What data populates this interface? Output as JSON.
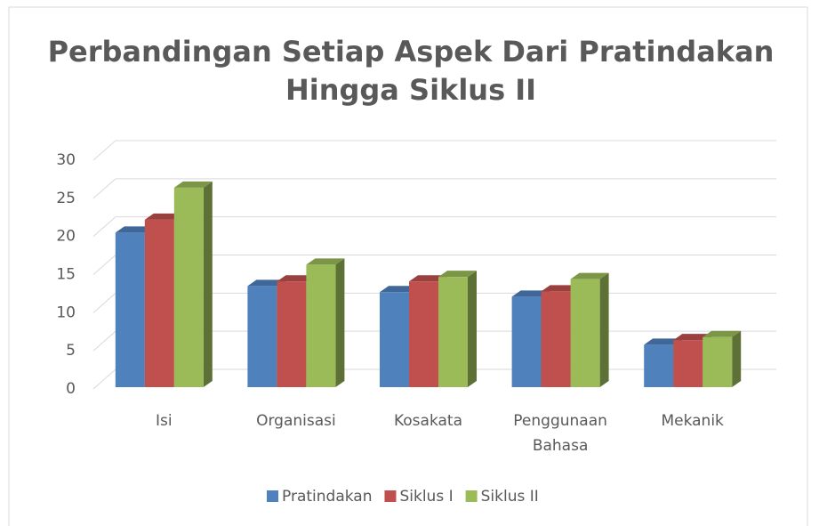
{
  "chart_data": {
    "type": "bar3d",
    "title": [
      "Perbandingan Setiap Aspek Dari Pratindakan",
      "Hingga Siklus II"
    ],
    "categories": [
      "Isi",
      "Organisasi",
      "Kosakata",
      "Penggunaan Bahasa",
      "Mekanik"
    ],
    "series": [
      {
        "name": "Pratindakan",
        "color": "#4f81bd",
        "values": [
          20.5,
          13.5,
          12.7,
          12.1,
          5.8
        ]
      },
      {
        "name": "Siklus I",
        "color": "#c0504d",
        "values": [
          22.2,
          14.1,
          14.1,
          12.8,
          6.4
        ]
      },
      {
        "name": "Siklus II",
        "color": "#9bbb59",
        "values": [
          26.4,
          16.3,
          14.7,
          14.4,
          6.8
        ]
      }
    ],
    "ylim": [
      0,
      30
    ],
    "yticks": [
      0,
      5,
      10,
      15,
      20,
      25,
      30
    ],
    "grid": true,
    "legend": "bottom"
  }
}
